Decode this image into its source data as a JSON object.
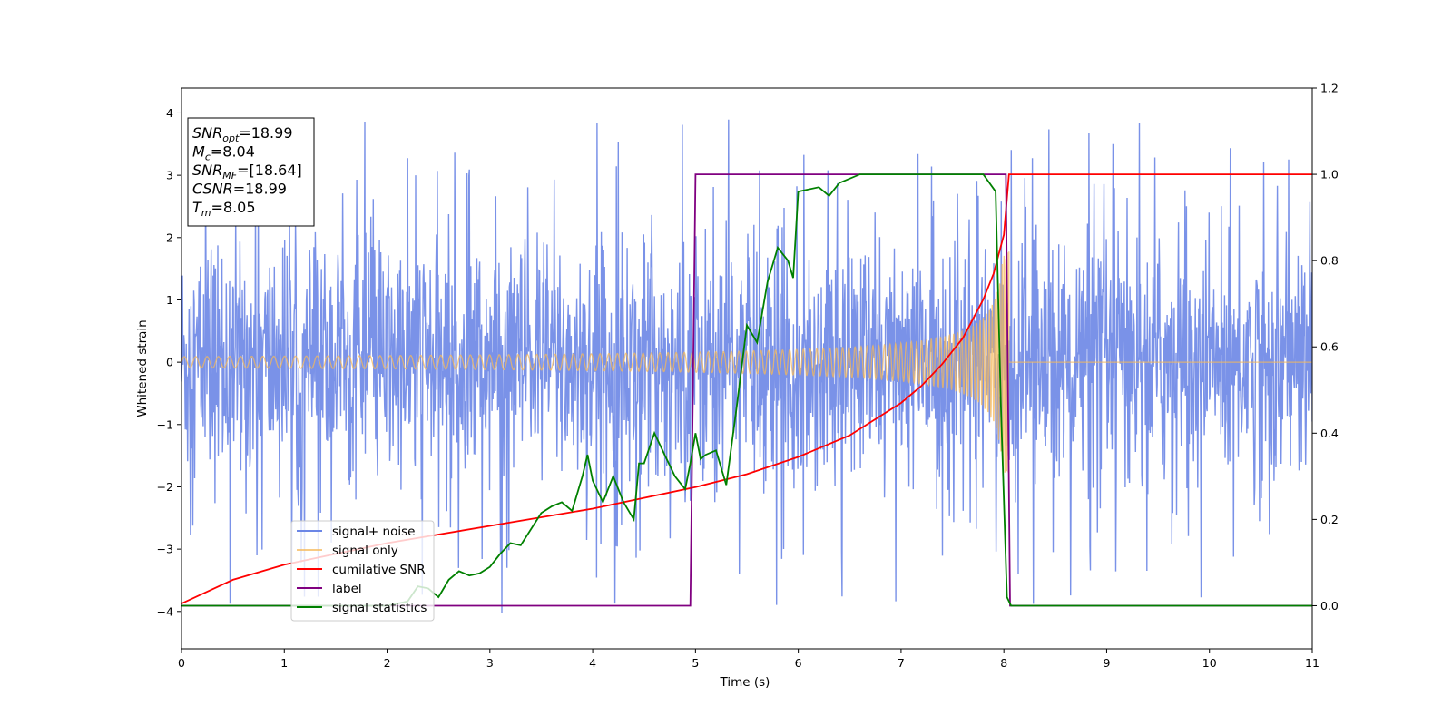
{
  "chart_data": {
    "type": "line",
    "xlabel": "Time (s)",
    "ylabel": "Whitened strain",
    "xlim": [
      0,
      11
    ],
    "ylim_left": [
      -4.6,
      4.4
    ],
    "ylim_right": [
      -0.1,
      1.2
    ],
    "x_ticks": [
      "0",
      "1",
      "2",
      "3",
      "4",
      "5",
      "6",
      "7",
      "8",
      "9",
      "10",
      "11"
    ],
    "y_ticks_left": [
      {
        "value": 4,
        "label": "4"
      },
      {
        "value": 3,
        "label": "3"
      },
      {
        "value": 2,
        "label": "2"
      },
      {
        "value": 1,
        "label": "1"
      },
      {
        "value": 0,
        "label": "0"
      },
      {
        "value": -1,
        "label": "−1"
      },
      {
        "value": -2,
        "label": "−2"
      },
      {
        "value": -3,
        "label": "−3"
      },
      {
        "value": -4,
        "label": "−4"
      }
    ],
    "y_ticks_right": [
      {
        "value": 1.2,
        "label": "1.2"
      },
      {
        "value": 1.0,
        "label": "1.0"
      },
      {
        "value": 0.8,
        "label": "0.8"
      },
      {
        "value": 0.6,
        "label": "0.6"
      },
      {
        "value": 0.4,
        "label": "0.4"
      },
      {
        "value": 0.2,
        "label": "0.2"
      },
      {
        "value": 0.0,
        "label": "0.0"
      }
    ],
    "grid": false,
    "legend_placement": "lower-left",
    "series": [
      {
        "name": "signal+ noise",
        "axis": "left",
        "color": "#6b86e6",
        "description_visual": "dense noisy trace, mostly within ±2.5 with spikes near ±4",
        "envelope_typical": [
          -2.5,
          2.5
        ]
      },
      {
        "name": "signal only",
        "axis": "left",
        "color": "#f5b85a",
        "chirp": {
          "start": 0,
          "end": 8.05,
          "amp_start": 0.09,
          "amp_end": 1.8
        }
      },
      {
        "name": "cumilative SNR",
        "axis": "right",
        "color": "#ff0000",
        "x": [
          0,
          0.5,
          1,
          1.5,
          2,
          2.5,
          3,
          3.5,
          4,
          4.5,
          5,
          5.5,
          6,
          6.5,
          7,
          7.2,
          7.4,
          7.6,
          7.8,
          7.9,
          8.0,
          8.05,
          11
        ],
        "y": [
          0.005,
          0.06,
          0.095,
          0.12,
          0.145,
          0.165,
          0.185,
          0.205,
          0.225,
          0.25,
          0.275,
          0.305,
          0.345,
          0.395,
          0.47,
          0.51,
          0.56,
          0.62,
          0.71,
          0.77,
          0.86,
          1.0,
          1.0
        ]
      },
      {
        "name": "label",
        "axis": "right",
        "color": "#800080",
        "x": [
          0,
          4.95,
          5.0,
          8.02,
          8.06,
          11
        ],
        "y": [
          0,
          0,
          1,
          1,
          0,
          0
        ]
      },
      {
        "name": "signal statistics",
        "axis": "right",
        "color": "#008000",
        "x": [
          0,
          1,
          2,
          2.2,
          2.3,
          2.4,
          2.5,
          2.6,
          2.7,
          2.8,
          2.9,
          3.0,
          3.1,
          3.2,
          3.3,
          3.5,
          3.6,
          3.7,
          3.8,
          3.9,
          3.95,
          4.0,
          4.1,
          4.2,
          4.3,
          4.4,
          4.45,
          4.5,
          4.6,
          4.7,
          4.8,
          4.9,
          4.95,
          5.0,
          5.05,
          5.1,
          5.2,
          5.3,
          5.4,
          5.5,
          5.6,
          5.7,
          5.8,
          5.9,
          5.95,
          6.0,
          6.2,
          6.3,
          6.4,
          6.6,
          7.0,
          7.5,
          7.8,
          7.92,
          7.97,
          8.03,
          8.07,
          8.2,
          11
        ],
        "y": [
          0,
          0,
          0,
          0.01,
          0.045,
          0.04,
          0.02,
          0.06,
          0.08,
          0.07,
          0.075,
          0.09,
          0.12,
          0.145,
          0.14,
          0.215,
          0.23,
          0.24,
          0.22,
          0.3,
          0.35,
          0.29,
          0.24,
          0.3,
          0.24,
          0.2,
          0.33,
          0.33,
          0.4,
          0.35,
          0.3,
          0.27,
          0.33,
          0.4,
          0.34,
          0.35,
          0.36,
          0.28,
          0.46,
          0.65,
          0.61,
          0.75,
          0.83,
          0.8,
          0.76,
          0.96,
          0.97,
          0.95,
          0.98,
          1.0,
          1.0,
          1.0,
          1.0,
          0.96,
          0.47,
          0.02,
          0.0,
          0.0,
          0.0
        ]
      }
    ],
    "info_box": [
      {
        "main": "SNR",
        "sub": "opt",
        "value": "=18.99"
      },
      {
        "main": "M",
        "sub": "c",
        "value": "=8.04"
      },
      {
        "main": "SNR",
        "sub": "MF",
        "value": "=[18.64]"
      },
      {
        "main": "CSNR",
        "sub": "",
        "value": "=18.99"
      },
      {
        "main": "T",
        "sub": "m",
        "value": "=8.05"
      }
    ]
  }
}
